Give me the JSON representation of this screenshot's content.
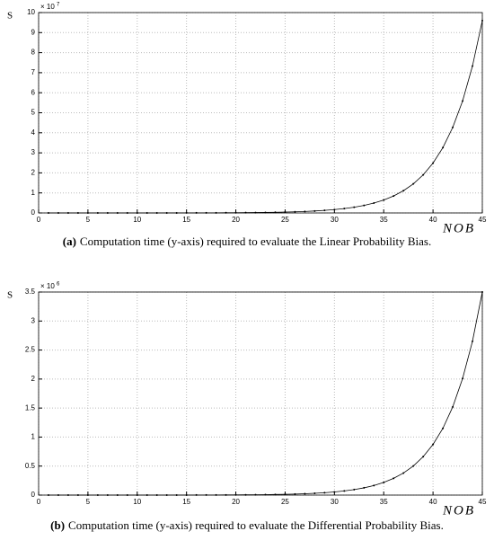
{
  "chart_data": [
    {
      "type": "line",
      "ylabel": "S",
      "xlabel": "NOB",
      "multiplier_base": "× 10",
      "multiplier_exp": "7",
      "caption_label": "(a)",
      "caption": "Computation time (y-axis) required to evaluate the Linear Probability Bias.",
      "grid": true,
      "xlim": [
        0,
        45
      ],
      "ylim": [
        0,
        10
      ],
      "xticks": [
        0,
        5,
        10,
        15,
        20,
        25,
        30,
        35,
        40,
        45
      ],
      "yticks": [
        0,
        1,
        2,
        3,
        4,
        5,
        6,
        7,
        8,
        9,
        10
      ],
      "x": [
        1,
        2,
        3,
        4,
        5,
        6,
        7,
        8,
        9,
        10,
        11,
        12,
        13,
        14,
        15,
        16,
        17,
        18,
        19,
        20,
        21,
        22,
        23,
        24,
        25,
        26,
        27,
        28,
        29,
        30,
        31,
        32,
        33,
        34,
        35,
        36,
        37,
        38,
        39,
        40,
        41,
        42,
        43,
        44,
        45
      ],
      "series": [
        {
          "color": "#000000",
          "values": [
            7e-05,
            9e-05,
            0.00011,
            0.00015,
            0.0002,
            0.00026,
            0.00034,
            0.00044,
            0.00058,
            0.00075,
            0.00099,
            0.00129,
            0.0017,
            0.00222,
            0.00291,
            0.00381,
            0.00499,
            0.00654,
            0.00857,
            0.0112,
            0.0147,
            0.0193,
            0.0252,
            0.0331,
            0.0433,
            0.0568,
            0.0743,
            0.0974,
            0.128,
            0.167,
            0.219,
            0.287,
            0.376,
            0.492,
            0.645,
            0.845,
            1.11,
            1.45,
            1.9,
            2.49,
            3.26,
            4.27,
            5.59,
            7.33,
            9.6
          ]
        }
      ]
    },
    {
      "type": "line",
      "ylabel": "S",
      "xlabel": "NOB",
      "multiplier_base": "× 10",
      "multiplier_exp": "6",
      "caption_label": "(b)",
      "caption": "Computation time (y-axis) required to evaluate the Differential Probability Bias.",
      "grid": true,
      "xlim": [
        0,
        45
      ],
      "ylim": [
        0,
        3.5
      ],
      "xticks": [
        0,
        5,
        10,
        15,
        20,
        25,
        30,
        35,
        40,
        45
      ],
      "yticks": [
        0,
        0.5,
        1,
        1.5,
        2,
        2.5,
        3,
        3.5
      ],
      "x": [
        1,
        2,
        3,
        4,
        5,
        6,
        7,
        8,
        9,
        10,
        11,
        12,
        13,
        14,
        15,
        16,
        17,
        18,
        19,
        20,
        21,
        22,
        23,
        24,
        25,
        26,
        27,
        28,
        29,
        30,
        31,
        32,
        33,
        34,
        35,
        36,
        37,
        38,
        39,
        40,
        41,
        42,
        43,
        44,
        45
      ],
      "series": [
        {
          "color": "#000000",
          "values": [
            2e-05,
            2e-05,
            3e-05,
            4e-05,
            5e-05,
            7e-05,
            9e-05,
            0.00012,
            0.00016,
            0.00021,
            0.00028,
            0.00037,
            0.00049,
            0.00065,
            0.00086,
            0.0011,
            0.0015,
            0.002,
            0.0026,
            0.0034,
            0.0045,
            0.0059,
            0.0078,
            0.0103,
            0.0136,
            0.0179,
            0.0236,
            0.0312,
            0.0412,
            0.0543,
            0.0717,
            0.0947,
            0.125,
            0.165,
            0.218,
            0.288,
            0.38,
            0.501,
            0.662,
            0.873,
            1.15,
            1.52,
            2.01,
            2.65,
            3.5
          ]
        }
      ]
    }
  ]
}
